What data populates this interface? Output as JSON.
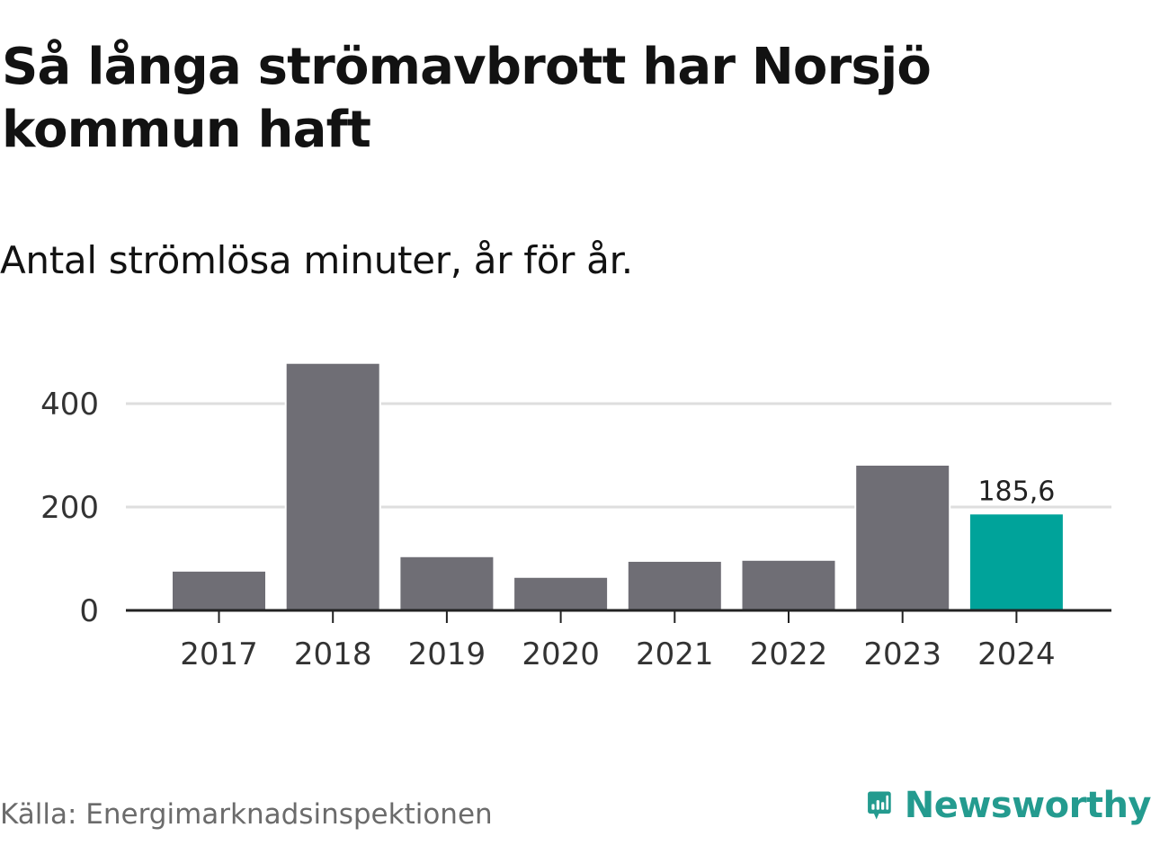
{
  "title": "Så långa strömavbrott har Norsjö kommun haft",
  "subtitle": "Antal strömlösa minuter, år för år.",
  "source": "Källa: Energimarknadsinspektionen",
  "brand": {
    "name": "Newsworthy",
    "color": "#249b8f",
    "icon": "chart-speech-bubble-icon"
  },
  "colors": {
    "bar": "#6f6e75",
    "highlight": "#00a39a",
    "grid": "#dedede",
    "axis": "#222222"
  },
  "chart_data": {
    "type": "bar",
    "title": "Så långa strömavbrott har Norsjö kommun haft",
    "subtitle": "Antal strömlösa minuter, år för år.",
    "xlabel": "",
    "ylabel": "",
    "categories": [
      "2017",
      "2018",
      "2019",
      "2020",
      "2021",
      "2022",
      "2023",
      "2024"
    ],
    "values": [
      75,
      477,
      103,
      63,
      94,
      96,
      280,
      185.6
    ],
    "highlight_index": 7,
    "data_labels": [
      {
        "index": 7,
        "text": "185,6"
      }
    ],
    "yticks": [
      0,
      200,
      400
    ],
    "ylim": [
      0,
      480
    ],
    "grid": true,
    "legend": "none"
  }
}
